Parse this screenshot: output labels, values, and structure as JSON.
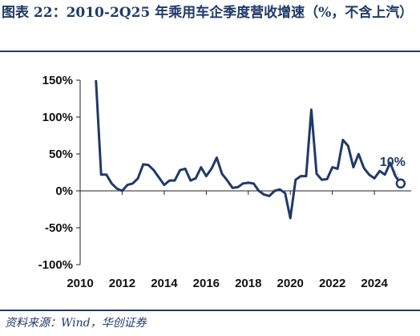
{
  "title": "图表 22：2010-2Q25 年乘用车企季度营收增速（%，不含上汽）",
  "source": "资料来源：Wind，华创证券",
  "colors": {
    "line": "#1f3a68",
    "axis": "#222222",
    "text": "#111111"
  },
  "chart_data": {
    "type": "line",
    "title": "图表 22：2010-2Q25 年乘用车企季度营收增速（%，不含上汽）",
    "xlabel": "",
    "ylabel": "",
    "xlim": [
      2010,
      2025.75
    ],
    "ylim": [
      -100,
      150
    ],
    "xticks": [
      "2010",
      "2012",
      "2014",
      "2016",
      "2018",
      "2020",
      "2022",
      "2024"
    ],
    "yticks": [
      "150%",
      "100%",
      "50%",
      "0%",
      "-50%",
      "-100%"
    ],
    "grid": false,
    "legend": "none",
    "annotation": {
      "text": "10%",
      "x": 2025.25,
      "y": 10
    },
    "series": [
      {
        "x": [
          2010.75,
          2011.0,
          2011.25,
          2011.5,
          2011.75,
          2012.0,
          2012.25,
          2012.5,
          2012.75,
          2013.0,
          2013.25,
          2013.5,
          2013.75,
          2014.0,
          2014.25,
          2014.5,
          2014.75,
          2015.0,
          2015.25,
          2015.5,
          2015.75,
          2016.0,
          2016.25,
          2016.5,
          2016.75,
          2017.0,
          2017.25,
          2017.5,
          2017.75,
          2018.0,
          2018.25,
          2018.5,
          2018.75,
          2019.0,
          2019.25,
          2019.5,
          2019.75,
          2020.0,
          2020.25,
          2020.5,
          2020.75,
          2021.0,
          2021.25,
          2021.5,
          2021.75,
          2022.0,
          2022.25,
          2022.5,
          2022.75,
          2023.0,
          2023.25,
          2023.5,
          2023.75,
          2024.0,
          2024.25,
          2024.5,
          2024.75,
          2025.0,
          2025.25
        ],
        "values": [
          150,
          22,
          22,
          10,
          3,
          0,
          8,
          10,
          17,
          36,
          35,
          28,
          18,
          8,
          14,
          14,
          28,
          30,
          14,
          17,
          32,
          20,
          30,
          45,
          23,
          14,
          4,
          5,
          10,
          11,
          10,
          0,
          -5,
          -7,
          0,
          2,
          -3,
          -37,
          15,
          20,
          20,
          110,
          23,
          15,
          16,
          32,
          30,
          69,
          61,
          32,
          50,
          31,
          22,
          17,
          27,
          22,
          38,
          20,
          10
        ]
      }
    ]
  }
}
